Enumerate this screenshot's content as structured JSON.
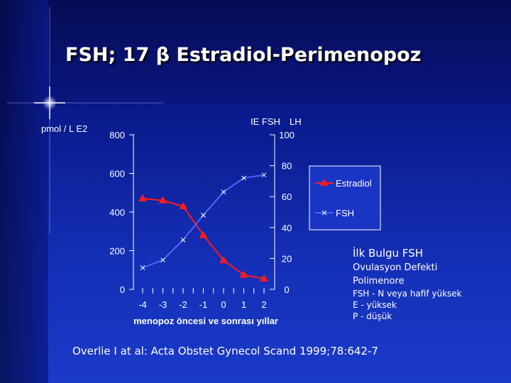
{
  "slide": {
    "title": "FSH; 17 β Estradiol-Perimenopoz",
    "notes": {
      "heading": "İlk Bulgu FSH",
      "line1": "Ovulasyon Defekti",
      "line2": "Polimenore",
      "line3": "FSH - N veya hafif yüksek",
      "line4": "E - yüksek",
      "line5": "P - düşük"
    },
    "reference": "Overlie I at al: Acta Obstet Gynecol Scand 1999;78:642-7"
  },
  "colors": {
    "estradiol": "#ff1a1a",
    "fsh": "#4d66ff",
    "panel": "#ffffff",
    "axis_text": "#ffffff"
  },
  "chart_data": {
    "type": "line",
    "x": [
      -4,
      -3,
      -2,
      -1,
      0,
      1,
      2
    ],
    "xlabel": "menopoz öncesi ve sonrası yıllar",
    "left_axis_label": "pmol / L E2",
    "right_axis_label_1": "IE FSH",
    "right_axis_label_2": "LH",
    "left_ylim": [
      0,
      800
    ],
    "left_ticks": [
      0,
      200,
      400,
      600,
      800
    ],
    "right_ylim": [
      0,
      100
    ],
    "right_ticks": [
      0,
      20,
      40,
      60,
      80,
      100
    ],
    "legend_position": "right",
    "series": [
      {
        "name": "Estradiol",
        "axis": "left",
        "marker": "triangle",
        "values": [
          470,
          460,
          430,
          280,
          150,
          75,
          55
        ]
      },
      {
        "name": "FSH",
        "axis": "right",
        "marker": "x",
        "values": [
          14,
          19,
          32,
          48,
          63,
          72,
          74
        ]
      }
    ]
  }
}
